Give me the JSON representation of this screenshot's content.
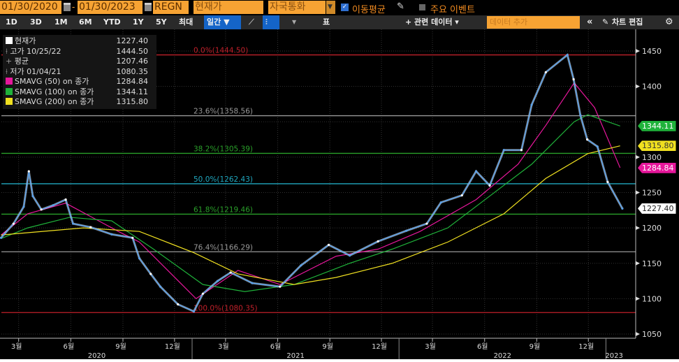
{
  "topbar": {
    "start_date": "01/30/2020",
    "end_date": "01/30/2023",
    "ticker": "REGN",
    "field": "현재가",
    "currency": "자국통화",
    "moving_avg_label": "이동평균",
    "moving_avg_checked": true,
    "events_label": "주요 이벤트",
    "events_checked": false
  },
  "toolbar": {
    "ranges": [
      "1D",
      "3D",
      "1M",
      "6M",
      "YTD",
      "1Y",
      "5Y",
      "최대"
    ],
    "period": "일간 ▼",
    "table_label": "표",
    "related_data": "+ 관련 데이터 ▾",
    "add_data_placeholder": "데이터 추가",
    "collapse": "«",
    "edit_chart": "차트 편집"
  },
  "legend": [
    {
      "label": "현재가",
      "value": "1227.40",
      "color": "#ffffff"
    },
    {
      "label": "고가 10/25/22",
      "value": "1444.50",
      "icon": "high-marker"
    },
    {
      "label": "평균",
      "value": "1207.46",
      "icon": "average-marker"
    },
    {
      "label": "저가 01/04/21",
      "value": "1080.35",
      "icon": "low-marker"
    },
    {
      "label": "SMAVG (50)  on 종가",
      "value": "1284.84",
      "color": "#e6179b"
    },
    {
      "label": "SMAVG (100)  on 종가",
      "value": "1344.11",
      "color": "#1fb23a"
    },
    {
      "label": "SMAVG (200)  on 종가",
      "value": "1315.80",
      "color": "#f0e020"
    }
  ],
  "chart_data": {
    "type": "line",
    "ylim": [
      1050,
      1460
    ],
    "y_ticks": [
      "1450",
      "1400",
      "1300",
      "1250",
      "1200",
      "1150",
      "1100",
      "1050"
    ],
    "x_range": [
      "2020-01-30",
      "2023-01-30"
    ],
    "x_month_ticks": [
      {
        "label": "3월",
        "date": "2020-03-01"
      },
      {
        "label": "6월",
        "date": "2020-06-01"
      },
      {
        "label": "9월",
        "date": "2020-09-01"
      },
      {
        "label": "12월",
        "date": "2020-12-01"
      },
      {
        "label": "3월",
        "date": "2021-03-01"
      },
      {
        "label": "6월",
        "date": "2021-06-01"
      },
      {
        "label": "9월",
        "date": "2021-09-01"
      },
      {
        "label": "12월",
        "date": "2021-12-01"
      },
      {
        "label": "3월",
        "date": "2022-03-01"
      },
      {
        "label": "6월",
        "date": "2022-06-01"
      },
      {
        "label": "9월",
        "date": "2022-09-01"
      },
      {
        "label": "12월",
        "date": "2022-12-01"
      }
    ],
    "x_year_labels": [
      {
        "label": "2020",
        "from": "2020-01-30",
        "to": "2021-01-01"
      },
      {
        "label": "2021",
        "from": "2021-01-01",
        "to": "2022-01-01"
      },
      {
        "label": "2022",
        "from": "2022-01-01",
        "to": "2023-01-01"
      },
      {
        "label": "2023",
        "from": "2023-01-01",
        "to": "2023-01-30"
      }
    ],
    "grid": true,
    "fibonacci": [
      {
        "label": "0.0%(1444.50)",
        "value": 1444.5,
        "color": "#c0202a"
      },
      {
        "label": "23.6%(1358.56)",
        "value": 1358.56,
        "color": "#999999"
      },
      {
        "label": "38.2%(1305.39)",
        "value": 1305.39,
        "color": "#2aa02a"
      },
      {
        "label": "50.0%(1262.43)",
        "value": 1262.43,
        "color": "#20a8c0"
      },
      {
        "label": "61.8%(1219.46)",
        "value": 1219.46,
        "color": "#2aa02a"
      },
      {
        "label": "76.4%(1166.29)",
        "value": 1166.29,
        "color": "#999999"
      },
      {
        "label": "100.0%(1080.35)",
        "value": 1080.35,
        "color": "#c0202a"
      }
    ],
    "price": {
      "color": "#5aa0e8",
      "points": [
        [
          "2020-01-30",
          1186
        ],
        [
          "2020-02-21",
          1206
        ],
        [
          "2020-03-10",
          1230
        ],
        [
          "2020-03-19",
          1280
        ],
        [
          "2020-03-26",
          1245
        ],
        [
          "2020-04-10",
          1226
        ],
        [
          "2020-05-01",
          1232
        ],
        [
          "2020-05-23",
          1240
        ],
        [
          "2020-06-05",
          1206
        ],
        [
          "2020-07-06",
          1201
        ],
        [
          "2020-08-12",
          1191
        ],
        [
          "2020-09-18",
          1186
        ],
        [
          "2020-09-30",
          1157
        ],
        [
          "2020-10-20",
          1135
        ],
        [
          "2020-11-06",
          1117
        ],
        [
          "2020-12-07",
          1092
        ],
        [
          "2021-01-04",
          1082
        ],
        [
          "2021-01-20",
          1107
        ],
        [
          "2021-02-15",
          1125
        ],
        [
          "2021-03-10",
          1137
        ],
        [
          "2021-04-17",
          1122
        ],
        [
          "2021-06-05",
          1117
        ],
        [
          "2021-07-12",
          1147
        ],
        [
          "2021-08-30",
          1176
        ],
        [
          "2021-10-06",
          1161
        ],
        [
          "2021-11-25",
          1181
        ],
        [
          "2022-01-14",
          1196
        ],
        [
          "2022-02-19",
          1206
        ],
        [
          "2022-03-16",
          1236
        ],
        [
          "2022-04-22",
          1246
        ],
        [
          "2022-05-17",
          1280
        ],
        [
          "2022-06-10",
          1260
        ],
        [
          "2022-07-05",
          1310
        ],
        [
          "2022-08-05",
          1310
        ],
        [
          "2022-08-23",
          1374
        ],
        [
          "2022-09-17",
          1420
        ],
        [
          "2022-10-25",
          1444.5
        ],
        [
          "2022-11-05",
          1410
        ],
        [
          "2022-11-17",
          1359
        ],
        [
          "2022-11-29",
          1325
        ],
        [
          "2022-12-17",
          1315
        ],
        [
          "2023-01-04",
          1265
        ],
        [
          "2023-01-30",
          1227.4
        ]
      ]
    },
    "series": [
      {
        "name": "SMAVG (50)  on 종가",
        "color": "#e6179b",
        "last": "1284.84",
        "points": [
          [
            "2020-01-30",
            1190
          ],
          [
            "2020-03-17",
            1220
          ],
          [
            "2020-05-23",
            1235
          ],
          [
            "2020-08-24",
            1195
          ],
          [
            "2020-09-30",
            1180
          ],
          [
            "2021-01-08",
            1100
          ],
          [
            "2021-03-23",
            1140
          ],
          [
            "2021-06-05",
            1120
          ],
          [
            "2021-09-12",
            1160
          ],
          [
            "2021-11-25",
            1170
          ],
          [
            "2022-02-07",
            1195
          ],
          [
            "2022-05-17",
            1240
          ],
          [
            "2022-07-30",
            1290
          ],
          [
            "2022-09-17",
            1345
          ],
          [
            "2022-11-06",
            1405
          ],
          [
            "2022-12-12",
            1370
          ],
          [
            "2023-01-26",
            1285
          ]
        ]
      },
      {
        "name": "SMAVG (100)  on 종가",
        "color": "#1fb23a",
        "last": "1344.11",
        "points": [
          [
            "2020-01-30",
            1185
          ],
          [
            "2020-03-17",
            1200
          ],
          [
            "2020-05-30",
            1215
          ],
          [
            "2020-08-12",
            1210
          ],
          [
            "2020-10-25",
            1170
          ],
          [
            "2021-01-20",
            1120
          ],
          [
            "2021-04-04",
            1110
          ],
          [
            "2021-06-30",
            1120
          ],
          [
            "2021-10-06",
            1150
          ],
          [
            "2021-12-20",
            1170
          ],
          [
            "2022-03-28",
            1200
          ],
          [
            "2022-06-10",
            1245
          ],
          [
            "2022-08-23",
            1290
          ],
          [
            "2022-11-06",
            1350
          ],
          [
            "2022-11-30",
            1360
          ],
          [
            "2023-01-26",
            1344
          ]
        ]
      },
      {
        "name": "SMAVG (200)  on 종가",
        "color": "#f0e020",
        "last": "1315.80",
        "points": [
          [
            "2020-01-30",
            1190
          ],
          [
            "2020-06-23",
            1200
          ],
          [
            "2020-09-30",
            1195
          ],
          [
            "2021-01-04",
            1165
          ],
          [
            "2021-03-23",
            1135
          ],
          [
            "2021-06-30",
            1120
          ],
          [
            "2021-09-12",
            1130
          ],
          [
            "2021-12-20",
            1150
          ],
          [
            "2022-03-28",
            1180
          ],
          [
            "2022-07-05",
            1220
          ],
          [
            "2022-09-17",
            1270
          ],
          [
            "2022-11-30",
            1305
          ],
          [
            "2023-01-26",
            1316
          ]
        ]
      }
    ],
    "last_price_tag": "1227.40"
  }
}
